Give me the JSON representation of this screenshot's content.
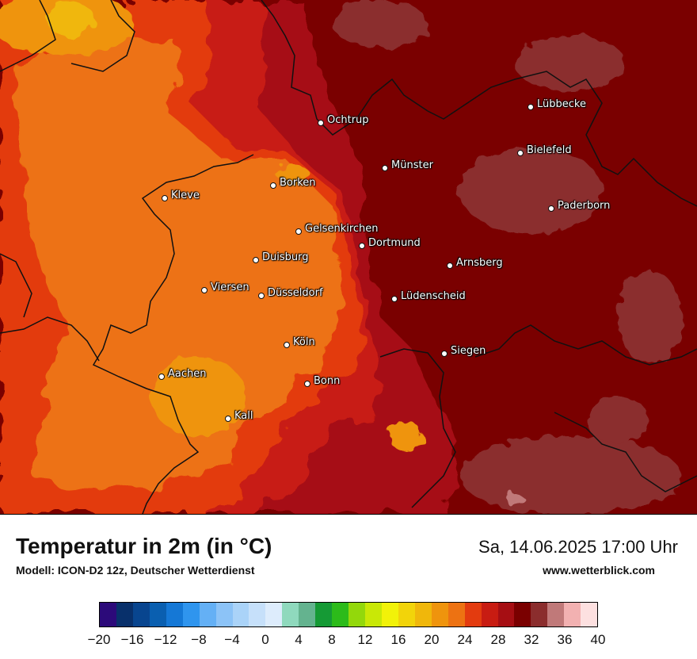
{
  "title": "Temperatur in 2m (in °C)",
  "subtitle": "Modell: ICON-D2 12z, Deutscher Wetterdienst",
  "datetime": "Sa, 14.06.2025 17:00 Uhr",
  "website": "www.wetterblick.com",
  "cities": [
    {
      "name": "Ochtrup"
    },
    {
      "name": "Lübbecke"
    },
    {
      "name": "Bielefeld"
    },
    {
      "name": "Münster"
    },
    {
      "name": "Borken"
    },
    {
      "name": "Kleve"
    },
    {
      "name": "Paderborn"
    },
    {
      "name": "Gelsenkirchen"
    },
    {
      "name": "Dortmund"
    },
    {
      "name": "Duisburg"
    },
    {
      "name": "Arnsberg"
    },
    {
      "name": "Viersen"
    },
    {
      "name": "Düsseldorf"
    },
    {
      "name": "Lüdenscheid"
    },
    {
      "name": "Köln"
    },
    {
      "name": "Siegen"
    },
    {
      "name": "Aachen"
    },
    {
      "name": "Bonn"
    },
    {
      "name": "Kall"
    }
  ],
  "colorbar": {
    "colors": [
      "#2c0a7a",
      "#08306b",
      "#08458f",
      "#0a5fb0",
      "#1578d6",
      "#2f95ee",
      "#64b0f5",
      "#8cc3f7",
      "#aad3f8",
      "#c6e0fa",
      "#ddecfc",
      "#8fd9bd",
      "#64b38f",
      "#159a35",
      "#2cbb1a",
      "#93d80b",
      "#c9e806",
      "#f2f209",
      "#f2d40a",
      "#f0b70b",
      "#ef940d",
      "#ed7212",
      "#e33b0f",
      "#c81c12",
      "#a60e13",
      "#7a0000",
      "#8b2d2d",
      "#c07979",
      "#f2b1b1",
      "#fde0e0"
    ],
    "ticks": [
      "−20",
      "−16",
      "−12",
      "−8",
      "−4",
      "0",
      "4",
      "8",
      "12",
      "16",
      "20",
      "24",
      "28",
      "32",
      "36",
      "40"
    ]
  }
}
